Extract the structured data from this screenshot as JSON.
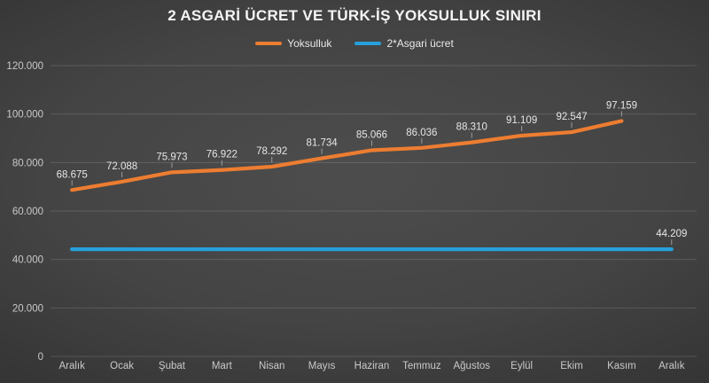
{
  "title": "2 ASGARİ ÜCRET VE TÜRK-İŞ YOKSULLUK SINIRI",
  "colors": {
    "background_center": "#4d4d4d",
    "background_edge": "#242424",
    "yoksulluk_line": "#ED7D31",
    "asgari_line": "#27A0DA",
    "gridline": "rgba(255,255,255,0.14)",
    "axis_text": "#c9c9c9",
    "label_text": "#e6e6e6"
  },
  "chart_data": {
    "type": "line",
    "categories": [
      "Aralık",
      "Ocak",
      "Şubat",
      "Mart",
      "Nisan",
      "Mayıs",
      "Haziran",
      "Temmuz",
      "Ağustos",
      "Eylül",
      "Ekim",
      "Kasım",
      "Aralık"
    ],
    "series": [
      {
        "name": "Yoksulluk",
        "color": "#ED7D31",
        "values": [
          68675,
          72088,
          75973,
          76922,
          78292,
          81734,
          85066,
          86036,
          88310,
          91109,
          92547,
          97159
        ],
        "data_labels": [
          "68.675",
          "72.088",
          "75.973",
          "76.922",
          "78.292",
          "81.734",
          "85.066",
          "86.036",
          "88.310",
          "91.109",
          "92.547",
          "97.159"
        ]
      },
      {
        "name": "2*Asgari ücret",
        "color": "#27A0DA",
        "values": [
          44209,
          44209,
          44209,
          44209,
          44209,
          44209,
          44209,
          44209,
          44209,
          44209,
          44209,
          44209,
          44209
        ],
        "data_labels": [
          null,
          null,
          null,
          null,
          null,
          null,
          null,
          null,
          null,
          null,
          null,
          null,
          "44.209"
        ]
      }
    ],
    "title": "2 ASGARİ ÜCRET VE TÜRK-İŞ YOKSULLUK SINIRI",
    "xlabel": "",
    "ylabel": "",
    "ylim": [
      0,
      120000
    ],
    "ytick_step": 20000,
    "ytick_labels": [
      "0",
      "20.000",
      "40.000",
      "60.000",
      "80.000",
      "100.000",
      "120.000"
    ],
    "grid": true,
    "legend_position": "top"
  }
}
